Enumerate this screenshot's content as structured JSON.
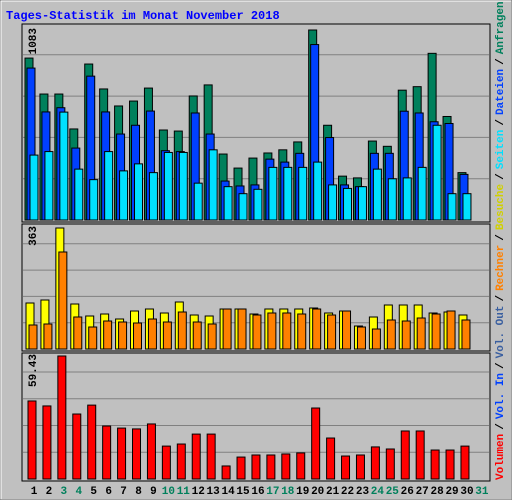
{
  "chart_data": {
    "type": "bar",
    "title": "Tages-Statistik im Monat November 2018",
    "categories": [
      "1",
      "2",
      "3",
      "4",
      "5",
      "6",
      "7",
      "8",
      "9",
      "10",
      "11",
      "12",
      "13",
      "14",
      "15",
      "16",
      "17",
      "18",
      "19",
      "20",
      "21",
      "22",
      "23",
      "24",
      "25",
      "26",
      "27",
      "28",
      "29",
      "30",
      "31"
    ],
    "category_colors": [
      "#000000",
      "#000000",
      "#00805c",
      "#00805c",
      "#000000",
      "#000000",
      "#000000",
      "#000000",
      "#000000",
      "#00805c",
      "#00805c",
      "#000000",
      "#000000",
      "#000000",
      "#000000",
      "#000000",
      "#00805c",
      "#00805c",
      "#000000",
      "#000000",
      "#000000",
      "#000000",
      "#000000",
      "#00805c",
      "#00805c",
      "#000000",
      "#000000",
      "#000000",
      "#000000",
      "#000000",
      "#00805c"
    ],
    "legend_separator": "/",
    "legend_extra": [
      {
        "name": "Vol. In",
        "color": "#0040ff"
      },
      {
        "name": "Vol. Out",
        "color": "#3a5fa0"
      }
    ],
    "panels": [
      {
        "ylim": [
          0,
          1083
        ],
        "yticks": [
          1083
        ],
        "series": [
          {
            "name": "Anfragen",
            "color": "#00805c",
            "values": [
              923,
              718,
              718,
              519,
              889,
              747,
              650,
              678,
              752,
              513,
              507,
              707,
              770,
              376,
              296,
              353,
              382,
              400,
              445,
              1083,
              540,
              250,
              240,
              450,
              420,
              740,
              760,
              950,
              590,
              270,
              null
            ]
          },
          {
            "name": "Dateien",
            "color": "#0040ff",
            "values": [
              866,
              616,
              640,
              410,
              820,
              616,
              490,
              540,
              621,
              395,
              390,
              610,
              490,
              222,
              194,
              200,
              347,
              330,
              380,
              1000,
              470,
              200,
              190,
              380,
              380,
              620,
              610,
              560,
              550,
              260,
              null
            ]
          },
          {
            "name": "Seiten",
            "color": "#00e0ff",
            "values": [
              370,
              390,
              615,
              290,
              230,
              390,
              280,
              320,
              270,
              385,
              385,
              210,
              400,
              190,
              150,
              175,
              300,
              300,
              300,
              330,
              200,
              180,
              190,
              290,
              235,
              240,
              300,
              540,
              150,
              150,
              null
            ]
          }
        ]
      },
      {
        "ylim": [
          0,
          363
        ],
        "yticks": [
          363
        ],
        "series": [
          {
            "name": "Besuche",
            "color": "#ffff00",
            "values": [
              138,
              147,
              363,
              135,
              99,
              105,
              90,
              114,
              120,
              108,
              141,
              102,
              99,
              120,
              120,
              105,
              120,
              120,
              120,
              123,
              108,
              114,
              69,
              96,
              132,
              132,
              132,
              108,
              111,
              102,
              null
            ]
          },
          {
            "name": "Rechner",
            "color": "#ff8000",
            "values": [
              72,
              75,
              291,
              96,
              66,
              84,
              81,
              78,
              90,
              81,
              111,
              81,
              75,
              120,
              120,
              102,
              108,
              108,
              105,
              120,
              102,
              114,
              66,
              60,
              87,
              84,
              93,
              105,
              114,
              87,
              null
            ]
          }
        ]
      },
      {
        "ylim": [
          0,
          59.43
        ],
        "yticks": [
          59.43
        ],
        "series": [
          {
            "name": "Volumen",
            "color": "#ff0000",
            "values": [
              37.7,
              35.3,
              59.43,
              31.4,
              35.7,
              25.6,
              24.6,
              24.2,
              26.6,
              15.9,
              16.9,
              21.7,
              21.7,
              6.3,
              10.6,
              11.6,
              11.6,
              12.1,
              12.6,
              34.3,
              19.8,
              11.1,
              11.6,
              15.5,
              14.5,
              23.2,
              23.2,
              14.0,
              14.0,
              15.9,
              null
            ]
          }
        ]
      }
    ]
  }
}
